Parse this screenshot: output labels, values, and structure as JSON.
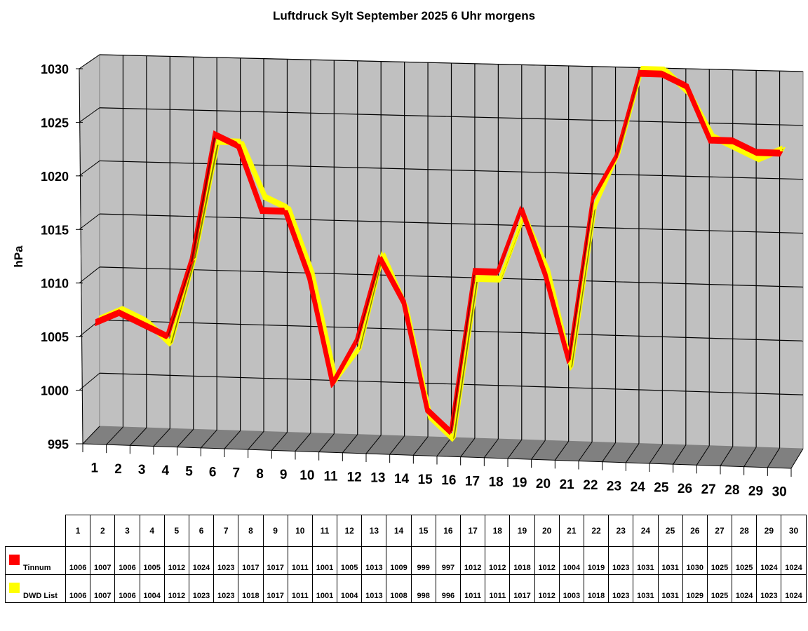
{
  "chart_data": {
    "type": "line",
    "subtype": "3d-ribbon",
    "title": "Luftdruck Sylt September 2025 6 Uhr morgens",
    "xlabel": "",
    "ylabel": "hPa",
    "ylim": [
      995,
      1030
    ],
    "yticks": [
      995,
      1000,
      1005,
      1010,
      1015,
      1020,
      1025,
      1030
    ],
    "grid": true,
    "legend_position": "table-bottom",
    "categories": [
      "1",
      "2",
      "3",
      "4",
      "5",
      "6",
      "7",
      "8",
      "9",
      "10",
      "11",
      "12",
      "13",
      "14",
      "15",
      "16",
      "17",
      "18",
      "19",
      "20",
      "21",
      "22",
      "23",
      "24",
      "25",
      "26",
      "27",
      "28",
      "29",
      "30"
    ],
    "series": [
      {
        "name": "Tinnum",
        "color": "#ff0000",
        "shade_color": "#800000",
        "values": [
          1006,
          1007,
          1006,
          1005,
          1012,
          1024,
          1023,
          1017,
          1017,
          1011,
          1001,
          1005,
          1013,
          1009,
          999,
          997,
          1012,
          1012,
          1018,
          1012,
          1004,
          1019,
          1023,
          1031,
          1031,
          1030,
          1025,
          1025,
          1024,
          1024
        ]
      },
      {
        "name": "DWD List",
        "color": "#ffff00",
        "shade_color": "#808000",
        "values": [
          1006,
          1007,
          1006,
          1004,
          1012,
          1023,
          1023,
          1018,
          1017,
          1011,
          1001,
          1004,
          1013,
          1008,
          998,
          996,
          1011,
          1011,
          1017,
          1012,
          1003,
          1018,
          1023,
          1031,
          1031,
          1029,
          1025,
          1024,
          1023,
          1024
        ]
      }
    ]
  },
  "colors": {
    "wall": "#c0c0c0",
    "floor": "#808080",
    "grid": "#000000"
  }
}
